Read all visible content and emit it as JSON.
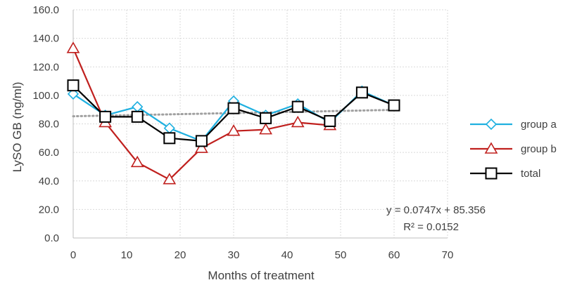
{
  "chart_data": {
    "type": "line",
    "title": "",
    "xlabel": "Months of treatment",
    "ylabel": "LySO GB (ng/ml)",
    "xlim": [
      0,
      70
    ],
    "ylim": [
      0,
      160
    ],
    "x_ticks": [
      "0",
      "10",
      "20",
      "30",
      "40",
      "50",
      "60",
      "70"
    ],
    "y_ticks": [
      "0.0",
      "20.0",
      "40.0",
      "60.0",
      "80.0",
      "100.0",
      "120.0",
      "140.0",
      "160.0"
    ],
    "grid": true,
    "legend_position": "right",
    "series": [
      {
        "name": "group a",
        "color": "#1fb0e0",
        "marker": "diamond",
        "x": [
          0,
          6,
          12,
          18,
          24,
          30,
          36,
          42,
          48,
          54,
          60
        ],
        "values": [
          101,
          86,
          92,
          77,
          68,
          96,
          86,
          94,
          81,
          103,
          93
        ]
      },
      {
        "name": "group b",
        "color": "#c0201e",
        "marker": "triangle",
        "x": [
          0,
          6,
          12,
          18,
          24,
          30,
          36,
          42,
          48
        ],
        "values": [
          133,
          81,
          53,
          41,
          63,
          75,
          76,
          81,
          79
        ]
      },
      {
        "name": "total",
        "color": "#000000",
        "marker": "square",
        "x": [
          0,
          6,
          12,
          18,
          24,
          30,
          36,
          42,
          48,
          54,
          60
        ],
        "values": [
          107,
          85,
          85,
          70,
          68,
          91,
          84,
          92,
          82,
          102,
          93
        ]
      }
    ],
    "trendline": {
      "x_range": [
        0,
        60
      ],
      "slope": 0.0747,
      "intercept": 85.356,
      "color": "#a0a0a0"
    },
    "annotations": [
      "y = 0.0747x + 85.356",
      "R² = 0.0152"
    ]
  }
}
